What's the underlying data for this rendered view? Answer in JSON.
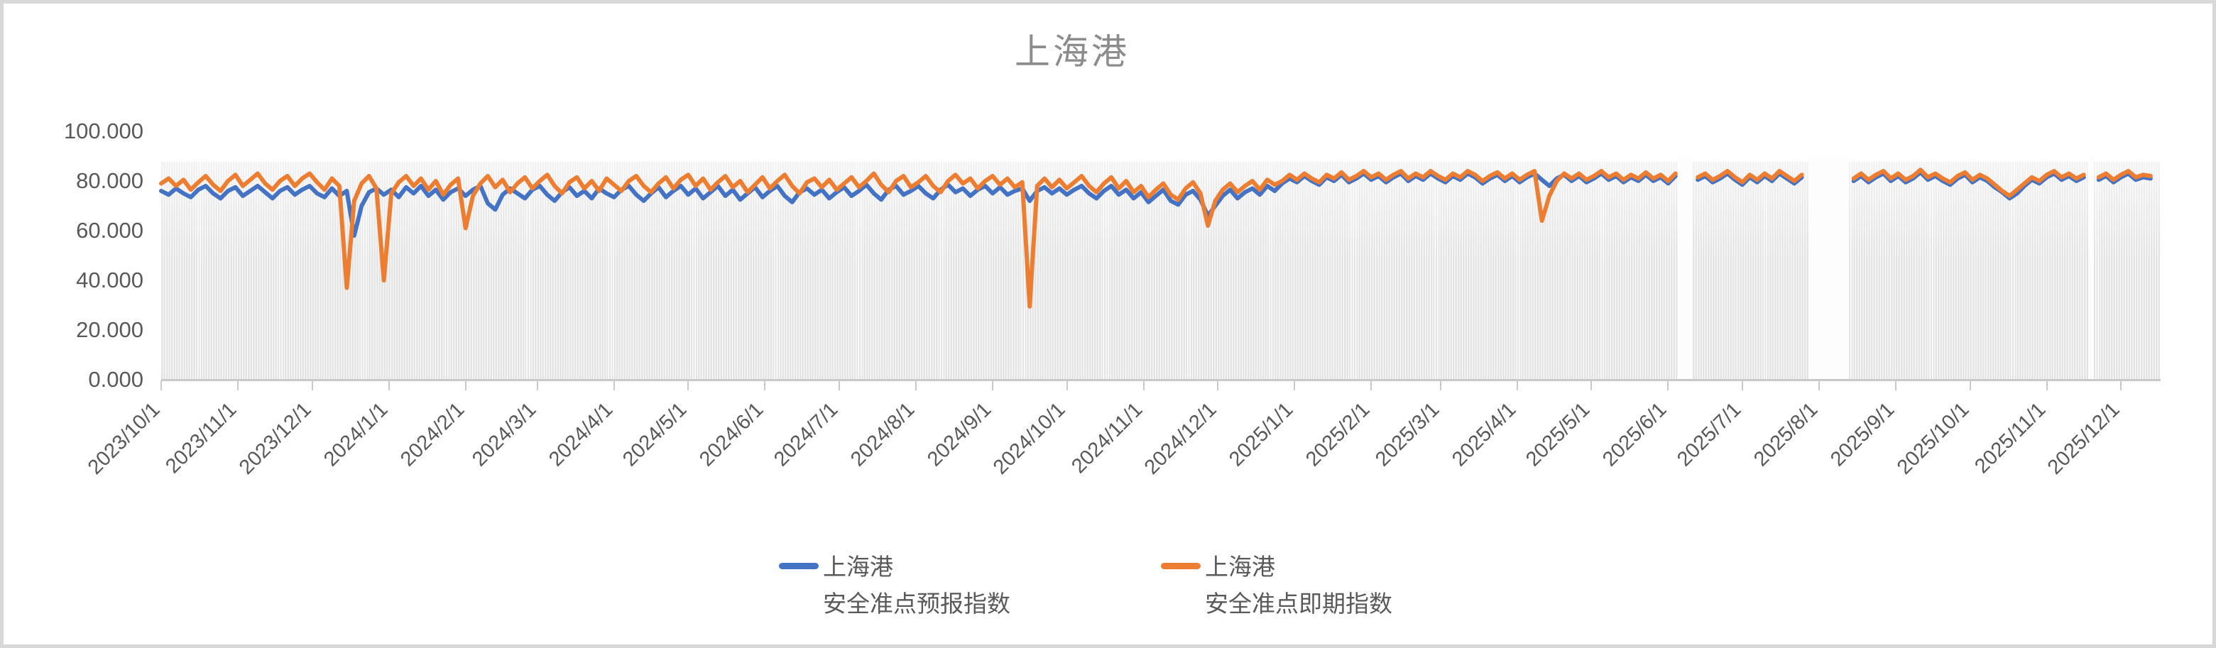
{
  "title": "上海港",
  "legend": {
    "entries": [
      {
        "line1": "上海港",
        "line2": "安全准点预报指数",
        "color": "#4472C4"
      },
      {
        "line1": "上海港",
        "line2": "安全准点即期指数",
        "color": "#ED7D31"
      }
    ]
  },
  "colors": {
    "series_forecast": "#4472C4",
    "series_spot": "#ED7D31",
    "axis_text": "#595959",
    "title_text": "#8C8C8C",
    "axis_line": "#C9C9C9",
    "stripe": "#E3E3E3",
    "frame_border": "#D8D8D8"
  },
  "chart_data": {
    "type": "line",
    "title": "上海港",
    "grid": "vertical-daily-stripes",
    "legend_position": "bottom",
    "y_axis": {
      "min": 0,
      "max": 100,
      "tick_interval": 20,
      "tick_values": [
        0,
        20,
        40,
        60,
        80,
        100
      ],
      "tick_labels": [
        "0.000",
        "20.000",
        "40.000",
        "60.000",
        "80.000",
        "100.000"
      ]
    },
    "x_axis": {
      "start_date": "2023/10/1",
      "end_date": "2025/12/15",
      "tick_labels": [
        "2023/10/1",
        "2023/11/1",
        "2023/12/1",
        "2024/1/1",
        "2024/2/1",
        "2024/3/1",
        "2024/4/1",
        "2024/5/1",
        "2024/6/1",
        "2024/7/1",
        "2024/8/1",
        "2024/9/1",
        "2024/10/1",
        "2024/11/1",
        "2024/12/1",
        "2025/1/1",
        "2025/2/1",
        "2025/3/1",
        "2025/4/1",
        "2025/5/1",
        "2025/6/1",
        "2025/7/1",
        "2025/8/1",
        "2025/9/1",
        "2025/10/1",
        "2025/11/1",
        "2025/12/1"
      ],
      "tick_day_offsets": [
        0,
        31,
        61,
        92,
        123,
        152,
        183,
        213,
        244,
        274,
        305,
        336,
        366,
        397,
        427,
        458,
        489,
        517,
        548,
        578,
        609,
        639,
        670,
        701,
        731,
        762,
        792
      ]
    },
    "sampling": {
      "start_day_offset": 0,
      "step_days": 3,
      "note": "daily data downsampled; values estimated from pixels, index 0 = 2023/10/1"
    },
    "missing_data_day_ranges": [
      [
        613,
        619
      ],
      [
        666,
        682
      ],
      [
        779,
        781
      ]
    ],
    "background_band_top_value": 87.7,
    "series": [
      {
        "name": "上海港 安全准点预报指数",
        "color": "#4472C4",
        "values": [
          76,
          74.5,
          77,
          75,
          73.5,
          76.5,
          78,
          75,
          73,
          76,
          77.5,
          74,
          76,
          78,
          75.5,
          73,
          76,
          77.5,
          74.5,
          76.5,
          78,
          75,
          73.5,
          77,
          74,
          76,
          58,
          70,
          75.5,
          77,
          74.5,
          76.5,
          73.5,
          77.5,
          75,
          78,
          74,
          76.5,
          72.5,
          75.5,
          77,
          74,
          76.5,
          78,
          71,
          68.5,
          74.5,
          77,
          75,
          73,
          76.5,
          78,
          74.5,
          72,
          75.5,
          77.5,
          74,
          76,
          73,
          77,
          75,
          73.5,
          76.5,
          78,
          74.5,
          72,
          75,
          77.5,
          73.5,
          76,
          78,
          74.5,
          77,
          73,
          75.5,
          78,
          74,
          76.5,
          72.5,
          75,
          77.5,
          73.5,
          76,
          78,
          74,
          71.5,
          75.5,
          77,
          74.5,
          76.5,
          73,
          75.5,
          77.5,
          74,
          76,
          78.5,
          75,
          72.5,
          76.5,
          78,
          74.5,
          76,
          78,
          75,
          73,
          76.5,
          78.5,
          75.5,
          77,
          74,
          76.5,
          78,
          75,
          77.5,
          74.5,
          76,
          77,
          72,
          76,
          77.5,
          75,
          77,
          74.5,
          76.5,
          78,
          75,
          73,
          76,
          78,
          74.5,
          76.5,
          73,
          75.5,
          71.5,
          74,
          76.5,
          72,
          70.5,
          74.5,
          76,
          72.5,
          66,
          70,
          74,
          76.5,
          73,
          75.5,
          77,
          74.5,
          78,
          76,
          79,
          81,
          79.5,
          82,
          80,
          78.5,
          81.5,
          80,
          82.5,
          79.5,
          81,
          83,
          80.5,
          82,
          79.5,
          81.5,
          83,
          80,
          82,
          80.5,
          83,
          81,
          79.5,
          82,
          80.5,
          83,
          81.5,
          79,
          81,
          82.5,
          80,
          82,
          79.5,
          81.5,
          83,
          80.5,
          78,
          81,
          82.5,
          80,
          82,
          79.5,
          81,
          83,
          80.5,
          82,
          79.5,
          81.5,
          80,
          82.5,
          80,
          81.5,
          79,
          82,
          null,
          null,
          80.5,
          82,
          79.5,
          81,
          83,
          80.5,
          78.5,
          81.5,
          79.5,
          82,
          80,
          83,
          81,
          79,
          81.5,
          null,
          null,
          null,
          null,
          null,
          null,
          80,
          82,
          79.5,
          81.5,
          83,
          80,
          82,
          79.5,
          81,
          83.5,
          80.5,
          82,
          80,
          78.5,
          81,
          82.5,
          79.5,
          81.5,
          80,
          77.5,
          75.5,
          73,
          75,
          78,
          80.5,
          79,
          81.5,
          83,
          80.5,
          82,
          80,
          81.5,
          null,
          80.5,
          82,
          79.5,
          81.5,
          83,
          80.5,
          81.5,
          81
        ]
      },
      {
        "name": "上海港 安全准点即期指数",
        "color": "#ED7D31",
        "values": [
          79,
          81,
          78,
          80.5,
          76.5,
          79.5,
          82,
          78.5,
          76,
          80,
          82.5,
          78,
          80.5,
          83,
          79,
          76.5,
          80,
          82,
          78,
          81,
          83,
          79.5,
          76.5,
          81,
          78,
          37,
          72,
          79,
          82,
          77,
          40,
          75,
          79.5,
          82,
          78,
          81,
          76.5,
          80,
          74.5,
          78.5,
          81,
          61,
          74,
          79,
          82,
          77.5,
          80.5,
          75.5,
          79,
          81.5,
          77,
          80,
          82.5,
          78,
          75,
          79.5,
          81.5,
          77,
          80,
          76,
          81,
          78.5,
          76,
          80,
          82,
          78,
          75.5,
          79,
          81.5,
          77,
          80.5,
          82.5,
          78,
          81,
          76.5,
          79.5,
          82,
          77.5,
          80,
          75.5,
          78.5,
          81.5,
          77,
          80,
          82.5,
          78,
          75,
          79.5,
          81,
          77.5,
          80.5,
          76.5,
          79,
          81.5,
          77.5,
          80,
          83,
          78.5,
          75.5,
          80,
          82,
          77.5,
          79.5,
          82,
          78,
          75.5,
          80,
          82.5,
          79,
          81,
          77,
          80,
          82,
          78.5,
          81,
          77.5,
          79.5,
          29.5,
          78,
          81,
          77.5,
          80.5,
          77,
          79.5,
          82,
          78,
          75.5,
          79,
          81.5,
          77,
          80,
          75.5,
          78,
          73.5,
          76.5,
          79,
          74.5,
          72.5,
          77,
          79.5,
          75,
          62,
          72,
          76.5,
          79,
          75.5,
          78,
          80,
          76.5,
          80.5,
          78.5,
          80,
          82.5,
          80.5,
          83,
          81,
          79.5,
          82.5,
          81,
          83.5,
          80.5,
          82,
          84,
          81.5,
          83,
          80.5,
          82.5,
          84,
          81,
          83,
          81.5,
          84,
          82,
          80.5,
          83,
          81.5,
          84,
          82.5,
          80,
          82,
          83.5,
          81,
          83,
          80.5,
          82.5,
          84,
          64,
          74,
          80,
          83,
          81,
          83,
          80.5,
          82,
          84,
          81.5,
          83,
          80.5,
          82.5,
          81,
          83.5,
          81,
          82.5,
          80,
          83,
          null,
          null,
          81.5,
          83,
          80.5,
          82,
          84,
          81.5,
          79.5,
          82.5,
          80.5,
          83,
          81,
          84,
          82,
          80,
          82.5,
          null,
          null,
          null,
          null,
          null,
          null,
          81,
          83,
          80.5,
          82.5,
          84,
          81,
          83,
          80.5,
          82,
          84.5,
          81.5,
          83,
          81,
          79.5,
          82,
          83.5,
          80.5,
          82.5,
          81,
          78.5,
          76,
          74,
          76.5,
          79,
          81.5,
          80,
          82.5,
          84,
          81.5,
          83,
          81,
          82.5,
          null,
          81.5,
          83,
          80.5,
          82.5,
          84,
          81.5,
          82.5,
          82
        ]
      }
    ]
  }
}
